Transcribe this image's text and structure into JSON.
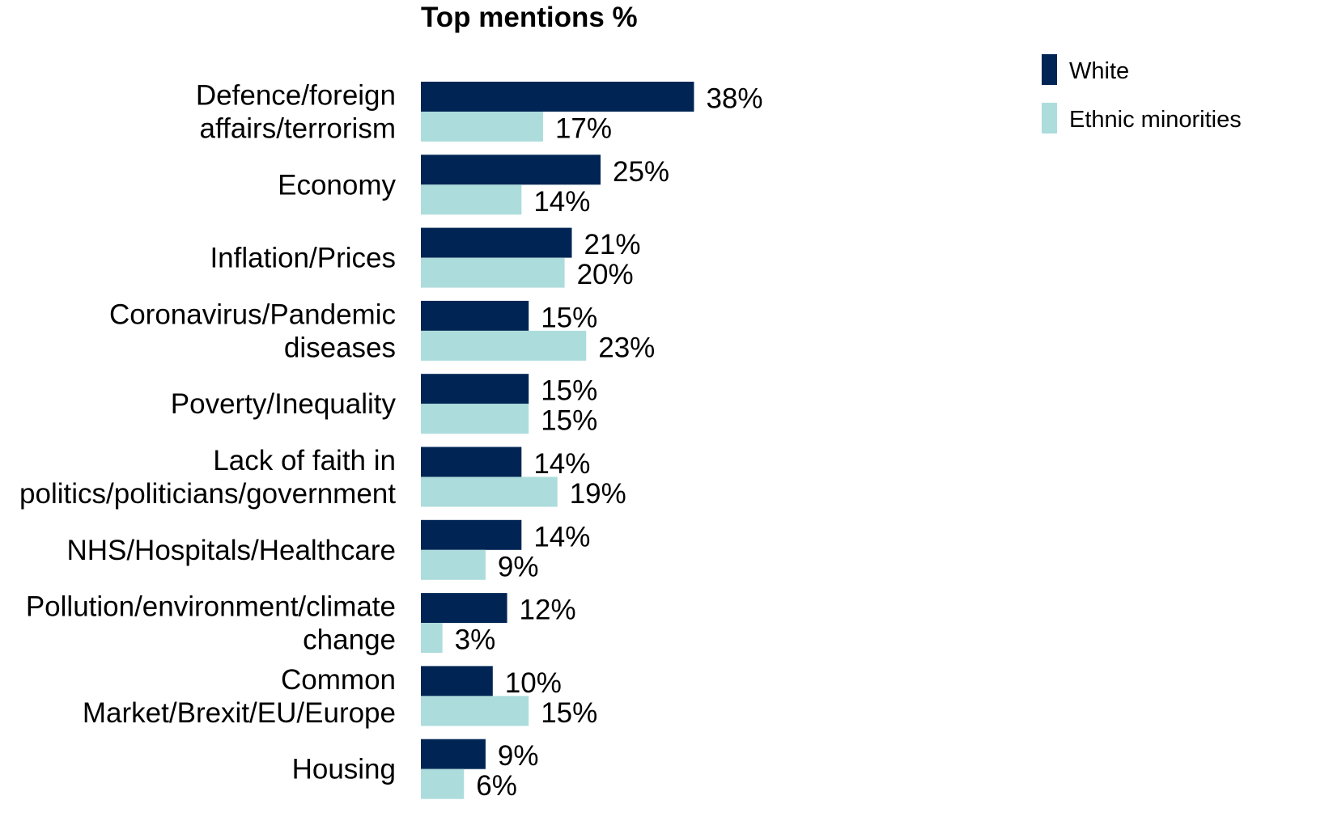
{
  "chart_data": {
    "type": "bar",
    "orientation": "horizontal",
    "title": "Top mentions %",
    "categories": [
      [
        "Defence/foreign",
        "affairs/terrorism"
      ],
      [
        "Economy"
      ],
      [
        "Inflation/Prices"
      ],
      [
        "Coronavirus/Pandemic",
        "diseases"
      ],
      [
        "Poverty/Inequality"
      ],
      [
        "Lack of faith in",
        "politics/politicians/government"
      ],
      [
        "NHS/Hospitals/Healthcare"
      ],
      [
        "Pollution/environment/climate",
        "change"
      ],
      [
        "Common",
        "Market/Brexit/EU/Europe"
      ],
      [
        "Housing"
      ]
    ],
    "series": [
      {
        "name": "White",
        "color": "#002554",
        "values": [
          38,
          25,
          21,
          15,
          15,
          14,
          14,
          12,
          10,
          9
        ]
      },
      {
        "name": "Ethnic minorities",
        "color": "#addcdc",
        "values": [
          17,
          14,
          20,
          23,
          15,
          19,
          9,
          3,
          15,
          6
        ]
      }
    ],
    "value_suffix": "%",
    "legend_position": "top-right",
    "grid": false
  }
}
